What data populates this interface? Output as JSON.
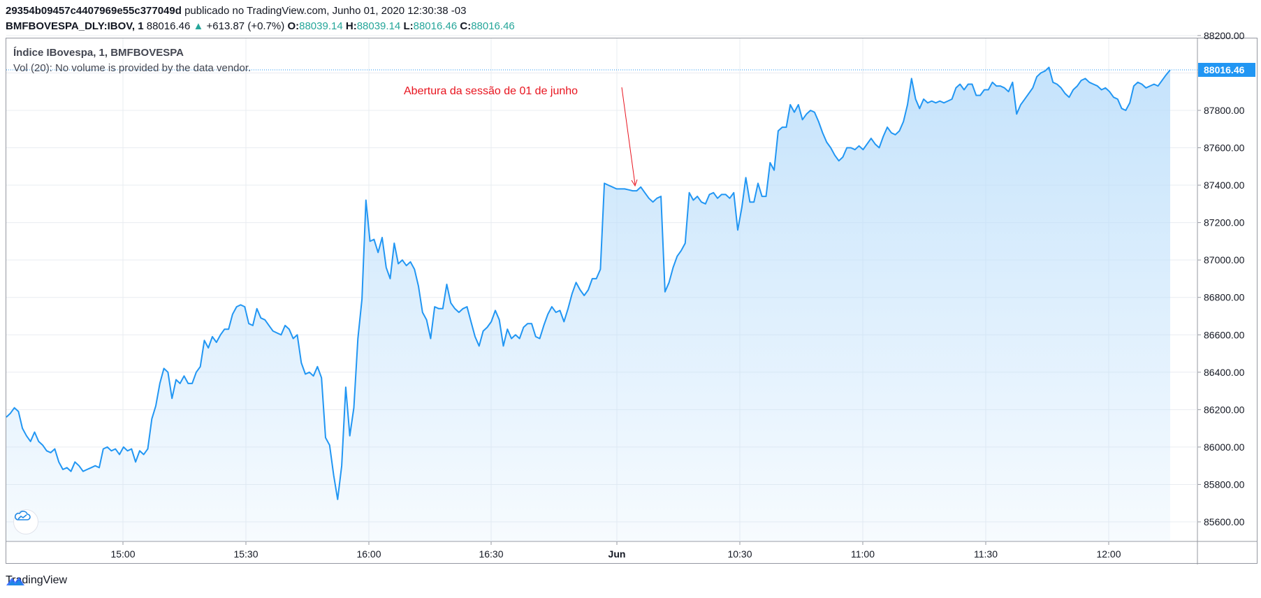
{
  "header": {
    "line1_id": "29354b09457c4407969e55c377049d",
    "line1_rest": " publicado no TradingView.com, Junho 01, 2020 12:30:38 -03",
    "symbol": "BMFBOVESPA_DLY:IBOV, 1",
    "last": "88016.46",
    "arrow": "▲",
    "change": "+613.87 (+0.7%)",
    "o_label": "O:",
    "o_value": "88039.14",
    "h_label": "H:",
    "h_value": "88039.14",
    "l_label": "L:",
    "l_value": "88016.46",
    "c_label": "C:",
    "c_value": "88016.46"
  },
  "legend": {
    "title": "Índice IBovespa, 1, BMFBOVESPA",
    "volume": "Vol (20): No volume is provided by the data vendor."
  },
  "annotation": {
    "text": "Abertura da sessão de 01 de junho",
    "color": "#e8141f"
  },
  "footer": {
    "brand": "TradingView"
  },
  "colors": {
    "line": "#2196f3",
    "fill": "#bbdefb",
    "grid": "#e9ecf1",
    "axis_text": "#131722",
    "price_tag_bg": "#2196f3",
    "price_tag_text": "#ffffff"
  },
  "chart_data": {
    "type": "area",
    "title": "",
    "xlabel": "",
    "ylabel": "",
    "x_ticks": [
      "15:00",
      "15:30",
      "16:00",
      "16:30",
      "Jun",
      "10:30",
      "11:00",
      "11:30",
      "12:00"
    ],
    "y_ticks": [
      85600,
      85800,
      86000,
      86200,
      86400,
      86600,
      86800,
      87000,
      87200,
      87400,
      87600,
      87800,
      88000,
      88200
    ],
    "y_tick_labels": [
      "85600.00",
      "85800.00",
      "86000.00",
      "86200.00",
      "86400.00",
      "86600.00",
      "86800.00",
      "87000.00",
      "87200.00",
      "87400.00",
      "87600.00",
      "87800.00",
      "88000.00",
      "88200.00"
    ],
    "ylim": [
      85490,
      88330
    ],
    "last_price": 88016.46,
    "last_price_label": "88016.46",
    "grid": true,
    "series": [
      {
        "values": [
          86160,
          86180,
          86210,
          86190,
          86100,
          86060,
          86030,
          86080,
          86030,
          86010,
          85980,
          85970,
          85990,
          85920,
          85880,
          85890,
          85870,
          85920,
          85900,
          85870,
          85880,
          85890,
          85900,
          85890,
          85990,
          86000,
          85980,
          85990,
          85960,
          86000,
          85980,
          85990,
          85920,
          85980,
          85960,
          85990,
          86150,
          86220,
          86340,
          86420,
          86400,
          86260,
          86360,
          86340,
          86380,
          86340,
          86340,
          86400,
          86430,
          86570,
          86530,
          86590,
          86560,
          86600,
          86630,
          86630,
          86710,
          86750,
          86760,
          86750,
          86660,
          86650,
          86740,
          86690,
          86680,
          86650,
          86620,
          86610,
          86600,
          86650,
          86630,
          86580,
          86600,
          86450,
          86390,
          86400,
          86380,
          86430,
          86370,
          86050,
          86010,
          85850,
          85720,
          85900,
          86320,
          86060,
          86210,
          86580,
          86790,
          87320,
          87100,
          87110,
          87040,
          87120,
          86960,
          86900,
          87090,
          86980,
          87000,
          86970,
          86990,
          86950,
          86860,
          86720,
          86680,
          86580,
          86750,
          86740,
          86740,
          86870,
          86770,
          86740,
          86720,
          86740,
          86750,
          86670,
          86590,
          86540,
          86620,
          86640,
          86670,
          86730,
          86680,
          86540,
          86630,
          86580,
          86600,
          86580,
          86640,
          86660,
          86660,
          86590,
          86580,
          86650,
          86710,
          86750,
          86720,
          86730,
          86670,
          86740,
          86820,
          86880,
          86840,
          86810,
          86840,
          86900,
          86900,
          86950,
          87410,
          87400,
          87390,
          87380,
          87380,
          87380,
          87375,
          87370,
          87370,
          87390,
          87360,
          87330,
          87310,
          87330,
          87340,
          86830,
          86880,
          86960,
          87020,
          87050,
          87090,
          87360,
          87320,
          87340,
          87310,
          87300,
          87350,
          87360,
          87330,
          87350,
          87350,
          87330,
          87360,
          87160,
          87280,
          87440,
          87310,
          87310,
          87410,
          87340,
          87340,
          87520,
          87480,
          87690,
          87710,
          87710,
          87830,
          87790,
          87830,
          87750,
          87780,
          87800,
          87790,
          87740,
          87680,
          87630,
          87600,
          87560,
          87530,
          87550,
          87600,
          87600,
          87590,
          87610,
          87590,
          87620,
          87650,
          87620,
          87600,
          87660,
          87710,
          87680,
          87670,
          87690,
          87740,
          87830,
          87970,
          87860,
          87810,
          87860,
          87840,
          87850,
          87840,
          87850,
          87840,
          87850,
          87860,
          87920,
          87940,
          87910,
          87940,
          87940,
          87880,
          87880,
          87910,
          87910,
          87950,
          87930,
          87930,
          87920,
          87900,
          87950,
          87780,
          87830,
          87860,
          87890,
          87920,
          87980,
          88000,
          88010,
          88030,
          87950,
          87940,
          87920,
          87890,
          87870,
          87910,
          87930,
          87960,
          87970,
          87950,
          87940,
          87930,
          87910,
          87920,
          87900,
          87870,
          87860,
          87810,
          87800,
          87840,
          87930,
          87950,
          87940,
          87920,
          87930,
          87940,
          87930,
          87960,
          87990,
          88016
        ]
      }
    ]
  }
}
